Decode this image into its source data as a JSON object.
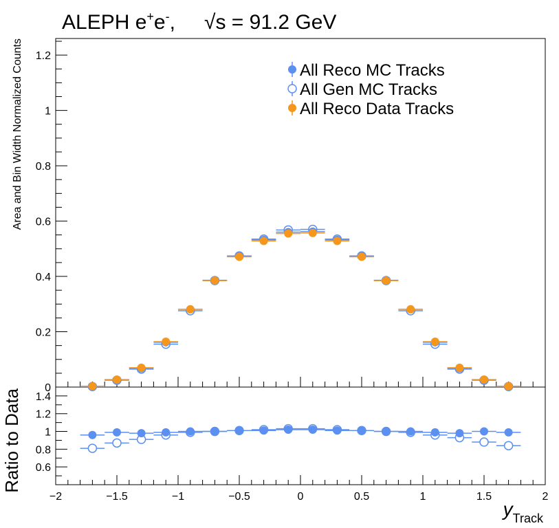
{
  "chart_data": {
    "type": "scatter",
    "title_left": "ALEPH e",
    "title_sup1": "+",
    "title_mid": "e",
    "title_sup2": "-",
    "title_sep": ",",
    "title_sqrt_s": "√s = 91.2 GeV",
    "x": [
      -1.7,
      -1.5,
      -1.3,
      -1.1,
      -0.9,
      -0.7,
      -0.5,
      -0.3,
      -0.1,
      0.1,
      0.3,
      0.5,
      0.7,
      0.9,
      1.1,
      1.3,
      1.5,
      1.7
    ],
    "x_halfwidth": 0.1,
    "top_panel": {
      "ylabel": "Area and Bin Width Normalized Counts",
      "ylim": [
        0,
        1.26
      ],
      "yticks": [
        "0",
        "0.2",
        "0.4",
        "0.6",
        "0.8",
        "1",
        "1.2"
      ],
      "series": [
        {
          "name": "All Reco MC Tracks",
          "marker": "filled",
          "color": "#5b8ff0",
          "values": [
            0.003,
            0.026,
            0.068,
            0.162,
            0.281,
            0.386,
            0.473,
            0.532,
            0.56,
            0.562,
            0.532,
            0.473,
            0.386,
            0.281,
            0.162,
            0.068,
            0.026,
            0.003
          ]
        },
        {
          "name": "All Gen MC Tracks",
          "marker": "open",
          "color": "#5b8ff0",
          "values": [
            0.002,
            0.025,
            0.065,
            0.155,
            0.276,
            0.385,
            0.474,
            0.535,
            0.568,
            0.57,
            0.535,
            0.474,
            0.385,
            0.276,
            0.155,
            0.065,
            0.025,
            0.002
          ]
        },
        {
          "name": "All Reco Data Tracks",
          "marker": "filled",
          "color": "#f5961d",
          "values": [
            0.003,
            0.027,
            0.07,
            0.164,
            0.281,
            0.385,
            0.471,
            0.528,
            0.555,
            0.557,
            0.528,
            0.471,
            0.385,
            0.281,
            0.164,
            0.07,
            0.027,
            0.003
          ]
        }
      ]
    },
    "ratio_panel": {
      "ylabel": "Ratio to Data",
      "ylim": [
        0.4,
        1.5
      ],
      "yticks": [
        "0.6",
        "0.8",
        "1",
        "1.2",
        "1.4"
      ],
      "series": [
        {
          "name": "All Reco MC Tracks / Data",
          "marker": "filled",
          "color": "#5b8ff0",
          "values": [
            0.96,
            0.99,
            0.98,
            0.99,
            1.0,
            1.0,
            1.01,
            1.01,
            1.02,
            1.02,
            1.01,
            1.01,
            1.0,
            1.0,
            0.99,
            0.98,
            1.0,
            0.99
          ]
        },
        {
          "name": "All Gen MC Tracks / Data",
          "marker": "open",
          "color": "#5b8ff0",
          "values": [
            0.81,
            0.87,
            0.91,
            0.96,
            0.99,
            1.0,
            1.01,
            1.02,
            1.03,
            1.03,
            1.02,
            1.01,
            1.0,
            0.99,
            0.96,
            0.93,
            0.88,
            0.84
          ]
        }
      ]
    },
    "xlim": [
      -2,
      2
    ],
    "xticks": [
      "−2",
      "−1.5",
      "−1",
      "−0.5",
      "0",
      "0.5",
      "1",
      "1.5",
      "2"
    ],
    "xlabel_main": "y",
    "xlabel_sub": "Track",
    "legend_position": "top-right"
  }
}
